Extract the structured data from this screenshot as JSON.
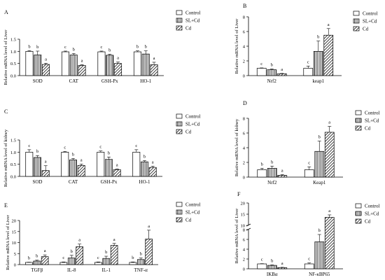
{
  "legend_labels": [
    "Control",
    "SL+Cd",
    "Cd"
  ],
  "chart_data": [
    {
      "panel": "A",
      "type": "bar",
      "ylabel": "Relative mRNA level of Liver",
      "categories": [
        "SOD",
        "CAT",
        "GSH-Px",
        "HO-1"
      ],
      "ylim": [
        0,
        1.5
      ],
      "yticks": [
        0.0,
        0.5,
        1.0,
        1.5
      ],
      "series": [
        {
          "name": "Control",
          "values": [
            1.0,
            0.98,
            0.98,
            0.98
          ],
          "errors": [
            0.03,
            0.03,
            0.03,
            0.04
          ],
          "letters": [
            "b",
            "c",
            "c",
            "b"
          ]
        },
        {
          "name": "SL+Cd",
          "values": [
            0.85,
            0.85,
            0.84,
            0.89
          ],
          "errors": [
            0.16,
            0.06,
            0.04,
            0.13
          ],
          "letters": [
            "b",
            "b",
            "b",
            "b"
          ]
        },
        {
          "name": "Cd",
          "values": [
            0.46,
            0.42,
            0.5,
            0.45
          ],
          "errors": [
            0.05,
            0.03,
            0.06,
            0.1
          ],
          "letters": [
            "a",
            "a",
            "a",
            "a"
          ]
        }
      ]
    },
    {
      "panel": "B",
      "type": "bar",
      "ylabel": "Relative mRNA level of Liver",
      "categories": [
        "Nrf2",
        "keap1"
      ],
      "ylim": [
        0,
        8
      ],
      "yticks": [
        0,
        2,
        4,
        6,
        8
      ],
      "series": [
        {
          "name": "Control",
          "values": [
            1.0,
            1.0
          ],
          "errors": [
            0.05,
            0.3
          ],
          "letters": [
            "c",
            "c"
          ]
        },
        {
          "name": "SL+Cd",
          "values": [
            0.8,
            3.3
          ],
          "errors": [
            0.1,
            1.4
          ],
          "letters": [
            "b",
            "b"
          ]
        },
        {
          "name": "Cd",
          "values": [
            0.25,
            5.5
          ],
          "errors": [
            0.05,
            0.9
          ],
          "letters": [
            "a",
            "a"
          ]
        }
      ]
    },
    {
      "panel": "C",
      "type": "bar",
      "ylabel": "Relative mRNA level of kidney",
      "categories": [
        "SOD",
        "CAT",
        "GSH-Px",
        "HO-1"
      ],
      "ylim": [
        0,
        1.5
      ],
      "yticks": [
        0.0,
        0.5,
        1.0,
        1.5
      ],
      "series": [
        {
          "name": "Control",
          "values": [
            1.0,
            1.0,
            1.0,
            1.0
          ],
          "errors": [
            0.1,
            0.03,
            0.05,
            0.1
          ],
          "letters": [
            "c",
            "c",
            "c",
            "c"
          ]
        },
        {
          "name": "SL+Cd",
          "values": [
            0.78,
            0.68,
            0.7,
            0.6
          ],
          "errors": [
            0.08,
            0.06,
            0.1,
            0.05
          ],
          "letters": [
            "b",
            "b",
            "b",
            "b"
          ]
        },
        {
          "name": "Cd",
          "values": [
            0.24,
            0.45,
            0.28,
            0.37
          ],
          "errors": [
            0.2,
            0.06,
            0.03,
            0.05
          ],
          "letters": [
            "a",
            "a",
            "a",
            "a"
          ]
        }
      ]
    },
    {
      "panel": "D",
      "type": "bar",
      "ylabel": "Relative mRNA level of kidney",
      "categories": [
        "Nrf2",
        "Keap1"
      ],
      "ylim": [
        0,
        8
      ],
      "yticks": [
        0,
        2,
        4,
        6,
        8
      ],
      "series": [
        {
          "name": "Control",
          "values": [
            1.0,
            1.0
          ],
          "errors": [
            0.2,
            0.4
          ],
          "letters": [
            "b",
            "c"
          ]
        },
        {
          "name": "SL+Cd",
          "values": [
            1.2,
            3.5
          ],
          "errors": [
            0.3,
            1.4
          ],
          "letters": [
            "b",
            "b"
          ]
        },
        {
          "name": "Cd",
          "values": [
            0.25,
            6.1
          ],
          "errors": [
            0.08,
            0.8
          ],
          "letters": [
            "a",
            "a"
          ]
        }
      ]
    },
    {
      "panel": "E",
      "type": "bar",
      "ylabel": "Relative mRNA level of Liver",
      "categories": [
        "TGFβ",
        "IL-8",
        "IL-1",
        "TNF-α"
      ],
      "ylim": [
        0,
        20
      ],
      "yticks": [
        0,
        5,
        10,
        15,
        20
      ],
      "series": [
        {
          "name": "Control",
          "values": [
            1.0,
            1.0,
            1.0,
            1.0
          ],
          "errors": [
            0.1,
            0.2,
            0.2,
            0.2
          ],
          "letters": [
            "b",
            "c",
            "c",
            "b"
          ]
        },
        {
          "name": "SL+Cd",
          "values": [
            1.6,
            3.0,
            2.8,
            2.3
          ],
          "errors": [
            0.4,
            1.2,
            1.0,
            0.7
          ],
          "letters": [
            "b",
            "b",
            "b",
            "b"
          ]
        },
        {
          "name": "Cd",
          "values": [
            3.6,
            8.1,
            8.7,
            11.6
          ],
          "errors": [
            0.8,
            1.2,
            0.9,
            4.0
          ],
          "letters": [
            "a",
            "a",
            "a",
            "a"
          ]
        }
      ]
    },
    {
      "panel": "F",
      "type": "bar",
      "ylabel": "Relative mRNA level of Liver",
      "categories": [
        "IKBα",
        "NF-κBP65"
      ],
      "axis_break": [
        8,
        10
      ],
      "yticks": [
        0,
        2,
        4,
        6,
        8,
        10,
        15,
        20
      ],
      "ylim": [
        0,
        20
      ],
      "series": [
        {
          "name": "Control",
          "values": [
            1.0,
            1.0
          ],
          "errors": [
            0.05,
            0.2
          ],
          "letters": [
            "c",
            "c"
          ]
        },
        {
          "name": "SL+Cd",
          "values": [
            0.7,
            5.5
          ],
          "errors": [
            0.1,
            1.5
          ],
          "letters": [
            "b",
            "b"
          ]
        },
        {
          "name": "Cd",
          "values": [
            0.25,
            13.6
          ],
          "errors": [
            0.05,
            1.1
          ],
          "letters": [
            "a",
            "a"
          ]
        }
      ]
    }
  ]
}
